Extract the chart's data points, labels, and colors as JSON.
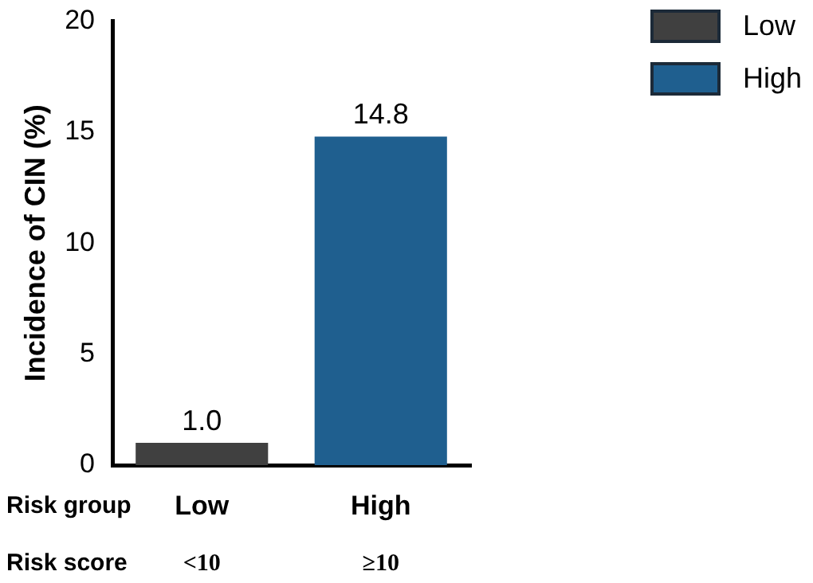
{
  "chart_data": {
    "type": "bar",
    "ylabel": "Incidence of CIN (%)",
    "categories": [
      "Low",
      "High"
    ],
    "series": [
      {
        "name": "Low",
        "color": "#404040",
        "values": [
          1.0,
          null
        ],
        "value_labels": [
          "1.0",
          null
        ]
      },
      {
        "name": "High",
        "color": "#1f5f8f",
        "values": [
          null,
          14.8
        ],
        "value_labels": [
          null,
          "14.8"
        ]
      }
    ],
    "ylim": [
      0,
      20
    ],
    "yticks": [
      0,
      5,
      10,
      15,
      20
    ],
    "grid": false,
    "legend": "top right",
    "annotations": [
      "Risk group",
      "Risk score",
      "<10",
      "≥10"
    ]
  }
}
